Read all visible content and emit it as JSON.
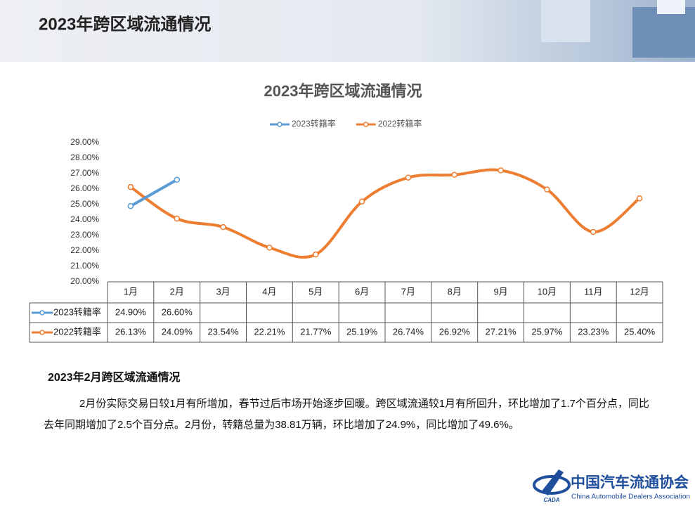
{
  "header": {
    "title": "2023年跨区域流通情况"
  },
  "chart_data": {
    "type": "line",
    "title": "2023年跨区域流通情况",
    "categories": [
      "1月",
      "2月",
      "3月",
      "4月",
      "5月",
      "6月",
      "7月",
      "8月",
      "9月",
      "10月",
      "11月",
      "12月"
    ],
    "series": [
      {
        "name": "2023转籍率",
        "color": "#5b9bd5",
        "smooth": false,
        "values": [
          24.9,
          26.6,
          null,
          null,
          null,
          null,
          null,
          null,
          null,
          null,
          null,
          null
        ],
        "value_labels": [
          "24.90%",
          "26.60%",
          null,
          null,
          null,
          null,
          null,
          null,
          null,
          null,
          null,
          null
        ]
      },
      {
        "name": "2022转籍率",
        "color": "#ed7d31",
        "smooth": true,
        "values": [
          26.13,
          24.09,
          23.54,
          22.21,
          21.77,
          25.19,
          26.74,
          26.92,
          27.21,
          25.97,
          23.23,
          25.4
        ],
        "value_labels": [
          "26.13%",
          "24.09%",
          "23.54%",
          "22.21%",
          "21.77%",
          "25.19%",
          "26.74%",
          "26.92%",
          "27.21%",
          "25.97%",
          "23.23%",
          "25.40%"
        ]
      }
    ],
    "ylim": [
      20,
      29
    ],
    "yticks": [
      {
        "value": 20,
        "label": "20.00%"
      },
      {
        "value": 21,
        "label": "21.00%"
      },
      {
        "value": 22,
        "label": "22.00%"
      },
      {
        "value": 23,
        "label": "23.00%"
      },
      {
        "value": 24,
        "label": "24.00%"
      },
      {
        "value": 25,
        "label": "25.00%"
      },
      {
        "value": 26,
        "label": "26.00%"
      },
      {
        "value": 27,
        "label": "27.00%"
      },
      {
        "value": 28,
        "label": "28.00%"
      },
      {
        "value": 29,
        "label": "29.00%"
      }
    ],
    "legend": "top",
    "grid": false
  },
  "section": {
    "heading": "2023年2月跨区域流通情况",
    "paragraph": "2月份实际交易日较1月有所增加，春节过后市场开始逐步回暖。跨区域流通较1月有所回升，环比增加了1.7个百分点，同比去年同期增加了2.5个百分点。2月份，转籍总量为38.81万辆，环比增加了24.9%，同比增加了49.6%。"
  },
  "logo": {
    "name": "中国汽车流通协会",
    "english": "China Automobile Dealers Association",
    "mark": "CADA"
  }
}
